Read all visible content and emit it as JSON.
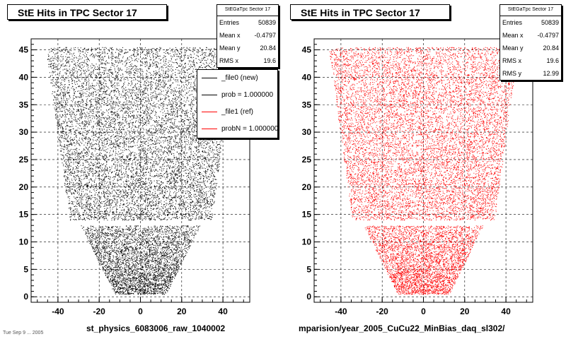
{
  "colors": {
    "left_points": "#000000",
    "right_points": "#ff0000",
    "grid": "#000000",
    "background": "#ffffff"
  },
  "left": {
    "title": "StE Hits in TPC Sector 17",
    "stats": {
      "name": "StEGaTpc Sector 17",
      "rows": [
        {
          "label": "Entries",
          "value": "50839"
        },
        {
          "label": "Mean x",
          "value": "-0.4797"
        },
        {
          "label": "Mean y",
          "value": "20.84"
        },
        {
          "label": "RMS x",
          "value": "19.6"
        }
      ]
    },
    "xtitle": "st_physics_6083006_raw_1040002",
    "footnote": "Tue Sep  9 ... 2005",
    "legend": [
      {
        "label": "_file0 (new)",
        "color": "#000000"
      },
      {
        "label": "prob = 1.000000",
        "color": "#000000"
      },
      {
        "label": "_file1 (ref)",
        "color": "#ff0000"
      },
      {
        "label": "probN = 1.000000",
        "color": "#ff0000"
      }
    ]
  },
  "right": {
    "title": "StE Hits in TPC Sector 17",
    "stats": {
      "name": "StEGaTpc Sector 17",
      "rows": [
        {
          "label": "Entries",
          "value": "50839"
        },
        {
          "label": "Mean x",
          "value": "-0.4797"
        },
        {
          "label": "Mean y",
          "value": "20.84"
        },
        {
          "label": "RMS x",
          "value": "19.6"
        },
        {
          "label": "RMS y",
          "value": "12.99"
        }
      ]
    },
    "xtitle": "mparision/year_2005_CuCu22_MinBias_daq_sl302/"
  },
  "chart_data": [
    {
      "type": "scatter",
      "title": "StE Hits in TPC Sector 17",
      "xlabel": "st_physics_6083006_raw_1040002",
      "ylabel": "",
      "xlim": [
        -53,
        53
      ],
      "ylim": [
        -1,
        47
      ],
      "xticks": [
        -40,
        -20,
        0,
        20,
        40
      ],
      "yticks": [
        0,
        5,
        10,
        15,
        20,
        25,
        30,
        35,
        40,
        45
      ],
      "ytick_labels": [
        "0",
        "5",
        "10",
        "15",
        "20",
        "25",
        "30",
        "35",
        "40",
        "45"
      ],
      "grid": true,
      "color": "#000000",
      "entries": 50839,
      "mean_x": -0.4797,
      "mean_y": 20.84,
      "rms_x": 19.6,
      "pad_rows": [
        {
          "y0": 0.5,
          "y1": 13.0,
          "x_half_at_y0": 12.5,
          "x_half_at_y1": 29.0
        },
        {
          "y0": 14.0,
          "y1": 45.5,
          "x_half_at_y0": 34.5,
          "x_half_at_y1": 46.0
        }
      ]
    },
    {
      "type": "scatter",
      "title": "StE Hits in TPC Sector 17",
      "xlabel": "mparision/year_2005_CuCu22_MinBias_daq_sl302/",
      "ylabel": "",
      "xlim": [
        -53,
        53
      ],
      "ylim": [
        -1,
        47
      ],
      "xticks": [
        -40,
        -20,
        0,
        20,
        40
      ],
      "yticks": [
        0,
        5,
        10,
        15,
        20,
        25,
        30,
        35,
        40,
        45
      ],
      "ytick_labels": [
        "0",
        "5",
        "10",
        "15",
        "20",
        "25",
        "30",
        "35",
        "40",
        "45"
      ],
      "grid": true,
      "color": "#ff0000",
      "entries": 50839,
      "mean_x": -0.4797,
      "mean_y": 20.84,
      "rms_x": 19.6,
      "rms_y": 12.99,
      "pad_rows": [
        {
          "y0": 0.5,
          "y1": 13.0,
          "x_half_at_y0": 12.5,
          "x_half_at_y1": 29.0
        },
        {
          "y0": 14.0,
          "y1": 45.5,
          "x_half_at_y0": 34.5,
          "x_half_at_y1": 46.0
        }
      ]
    }
  ]
}
